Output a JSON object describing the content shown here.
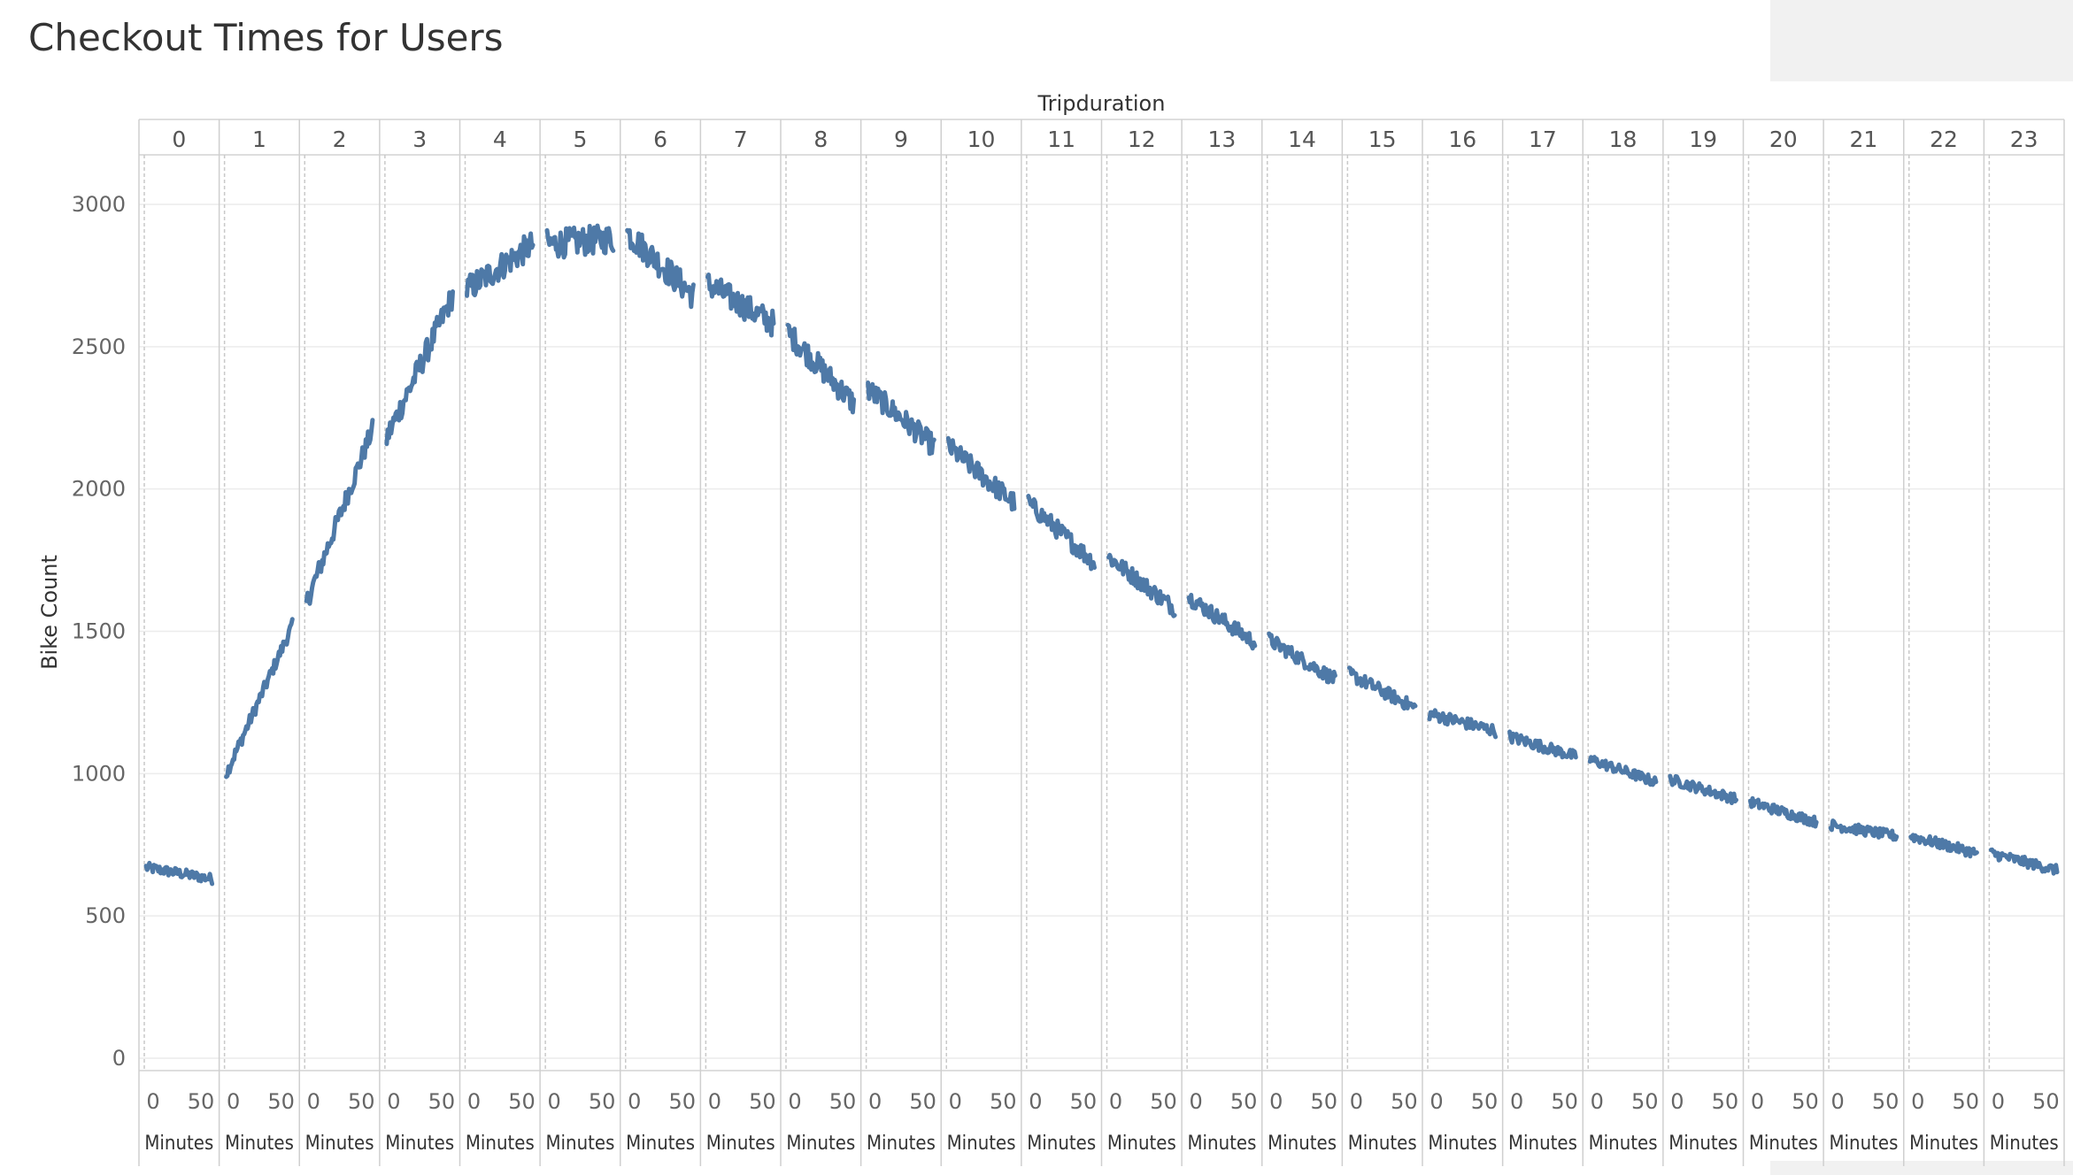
{
  "title": "Checkout Times for Users",
  "chart_data": {
    "type": "line",
    "title": "Checkout Times for Users",
    "column_header": "Tripduration",
    "ylabel": "Bike Count",
    "xlabel": "Minutes",
    "ylim": [
      0,
      3200
    ],
    "yticks": [
      0,
      500,
      1000,
      1500,
      2000,
      2500,
      3000
    ],
    "panel_xticks": [
      "0",
      "50"
    ],
    "panels": [
      "0",
      "1",
      "2",
      "3",
      "4",
      "5",
      "6",
      "7",
      "8",
      "9",
      "10",
      "11",
      "12",
      "13",
      "14",
      "15",
      "16",
      "17",
      "18",
      "19",
      "20",
      "21",
      "22",
      "23"
    ],
    "grid": true,
    "color": "#4e79a7",
    "series": [
      {
        "panel": "0",
        "start": 670,
        "end": 630
      },
      {
        "panel": "1",
        "start": 1000,
        "end": 1520
      },
      {
        "panel": "2",
        "start": 1600,
        "end": 2210
      },
      {
        "panel": "3",
        "start": 2180,
        "end": 2680
      },
      {
        "panel": "4",
        "start": 2700,
        "end": 2860
      },
      {
        "panel": "5",
        "start": 2860,
        "end": 2880
      },
      {
        "panel": "6",
        "start": 2900,
        "end": 2680
      },
      {
        "panel": "7",
        "start": 2720,
        "end": 2580
      },
      {
        "panel": "8",
        "start": 2550,
        "end": 2300
      },
      {
        "panel": "9",
        "start": 2350,
        "end": 2150
      },
      {
        "panel": "10",
        "start": 2150,
        "end": 1950
      },
      {
        "panel": "11",
        "start": 1950,
        "end": 1740
      },
      {
        "panel": "12",
        "start": 1760,
        "end": 1580
      },
      {
        "panel": "13",
        "start": 1620,
        "end": 1460
      },
      {
        "panel": "14",
        "start": 1470,
        "end": 1330
      },
      {
        "panel": "15",
        "start": 1350,
        "end": 1230
      },
      {
        "panel": "16",
        "start": 1210,
        "end": 1150
      },
      {
        "panel": "17",
        "start": 1130,
        "end": 1060
      },
      {
        "panel": "18",
        "start": 1050,
        "end": 970
      },
      {
        "panel": "19",
        "start": 980,
        "end": 910
      },
      {
        "panel": "20",
        "start": 900,
        "end": 830
      },
      {
        "panel": "21",
        "start": 820,
        "end": 780
      },
      {
        "panel": "22",
        "start": 780,
        "end": 720
      },
      {
        "panel": "23",
        "start": 720,
        "end": 660
      }
    ]
  }
}
